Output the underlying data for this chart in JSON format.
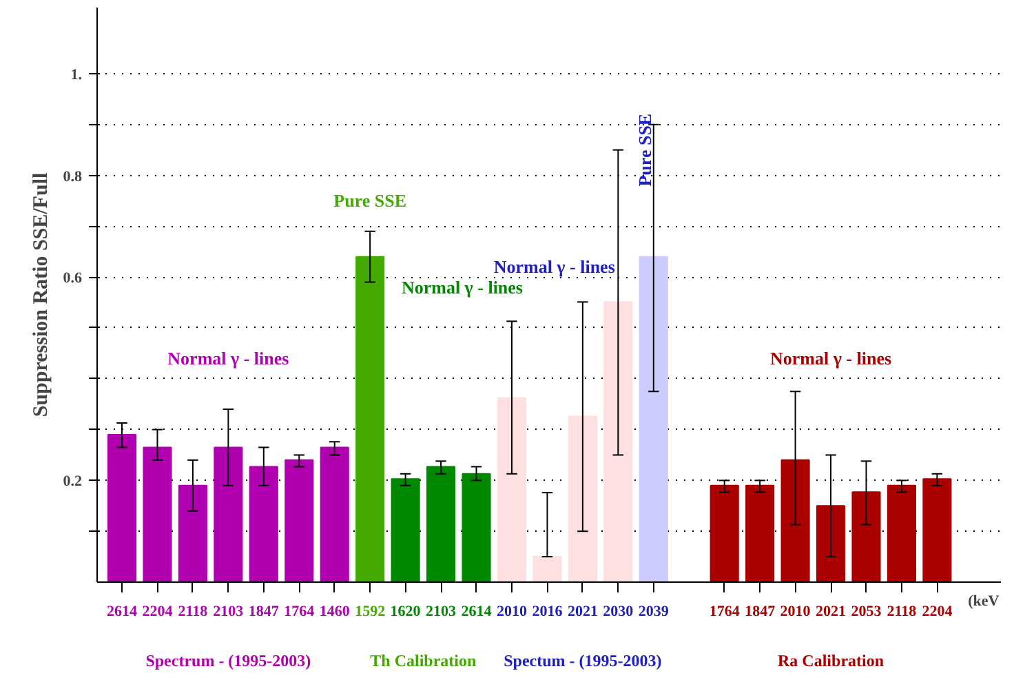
{
  "chart_data": {
    "type": "bar",
    "xlabel": "(keV",
    "ylabel": "Suppression Ratio SSE/Full",
    "categories": [
      "2614",
      "2204",
      "2118",
      "2103",
      "1847",
      "1764",
      "1460",
      "1592",
      "1620",
      "2103",
      "2614",
      "2010",
      "2016",
      "2021",
      "2030",
      "2039",
      null,
      "1764",
      "1847",
      "2010",
      "2021",
      "2053",
      "2118",
      "2204"
    ],
    "values": [
      0.29,
      0.265,
      0.19,
      0.265,
      0.227,
      0.24,
      0.265,
      0.64,
      0.203,
      0.227,
      0.213,
      0.362,
      0.05,
      0.326,
      0.551,
      0.64,
      null,
      0.19,
      0.19,
      0.24,
      0.15,
      0.177,
      0.19,
      0.203
    ],
    "colors": [
      "#b000b0",
      "#b000b0",
      "#b000b0",
      "#b000b0",
      "#b000b0",
      "#b000b0",
      "#b000b0",
      "#44aa00",
      "#008800",
      "#008800",
      "#008800",
      "#ffe0e0",
      "#ffe0e0",
      "#ffe0e0",
      "#ffe0e0",
      "#ccccff",
      "#ffffff",
      "#aa0000",
      "#aa0000",
      "#aa0000",
      "#aa0000",
      "#aa0000",
      "#aa0000",
      "#aa0000"
    ],
    "errors": [
      [
        0.265,
        0.313
      ],
      [
        0.24,
        0.3
      ],
      [
        0.14,
        0.24
      ],
      [
        0.19,
        0.34
      ],
      [
        0.19,
        0.265
      ],
      [
        0.227,
        0.25
      ],
      [
        0.25,
        0.276
      ],
      [
        0.59,
        0.69
      ],
      [
        0.19,
        0.213
      ],
      [
        0.213,
        0.238
      ],
      [
        0.2,
        0.227
      ],
      [
        0.213,
        0.513
      ],
      [
        0.05,
        0.176
      ],
      [
        0.1,
        0.551
      ],
      [
        0.25,
        0.85
      ],
      [
        0.375,
        0.9
      ],
      null,
      [
        0.177,
        0.2
      ],
      [
        0.177,
        0.2
      ],
      [
        0.113,
        0.375
      ],
      [
        0.05,
        0.25
      ],
      [
        0.113,
        0.238
      ],
      [
        0.177,
        0.2
      ],
      [
        0.19,
        0.213
      ]
    ],
    "ylim": [
      0,
      1.13
    ],
    "yticks": [
      {
        "value": 0.1,
        "label": null
      },
      {
        "value": 0.2,
        "label": "0.2"
      },
      {
        "value": 0.3,
        "label": null
      },
      {
        "value": 0.4,
        "label": null
      },
      {
        "value": 0.5,
        "label": null
      },
      {
        "value": 0.6,
        "label": "0.6"
      },
      {
        "value": 0.7,
        "label": null
      },
      {
        "value": 0.8,
        "label": "0.8"
      },
      {
        "value": 0.9,
        "label": null
      },
      {
        "value": 1.0,
        "label": "1."
      }
    ],
    "grid": "y",
    "annotations": [
      "Normal γ - lines",
      "Pure SSE",
      "Normal γ - lines",
      "Normal γ - lines",
      "Pure SSE",
      "Normal γ - lines",
      "Spectrum - (1995-2003)",
      "Th Calibration",
      "Spectum - (1995-2003)",
      "Ra Calibration"
    ]
  }
}
